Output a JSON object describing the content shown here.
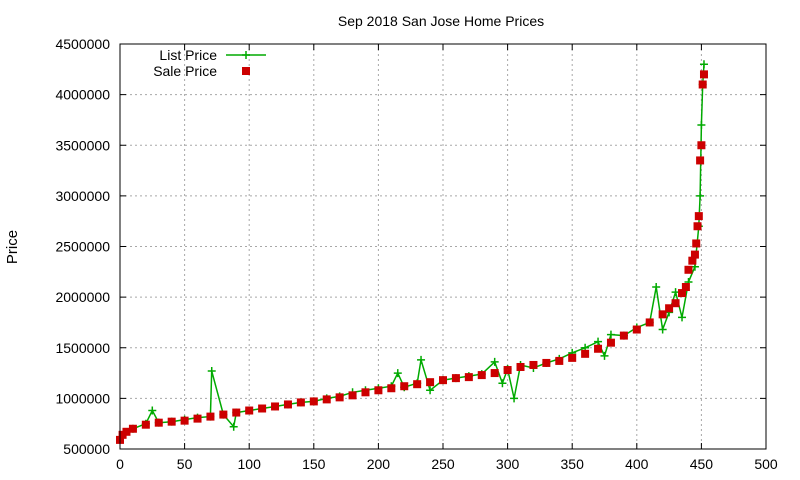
{
  "chart_data": {
    "type": "line",
    "title": "Sep 2018 San Jose Home Prices",
    "xlabel": "",
    "ylabel": "Price",
    "xlim": [
      0,
      500
    ],
    "ylim": [
      500000,
      4500000
    ],
    "x_ticks": [
      0,
      50,
      100,
      150,
      200,
      250,
      300,
      350,
      400,
      450,
      500
    ],
    "y_ticks": [
      500000,
      1000000,
      1500000,
      2000000,
      2500000,
      3000000,
      3500000,
      4000000,
      4500000
    ],
    "grid": true,
    "legend_position": "top-left",
    "series": [
      {
        "name": "List Price",
        "color": "#00aa00",
        "marker": "plus",
        "x": [
          0,
          10,
          20,
          25,
          30,
          40,
          50,
          60,
          70,
          71,
          80,
          88,
          90,
          100,
          110,
          120,
          130,
          140,
          150,
          160,
          170,
          180,
          190,
          200,
          210,
          215,
          220,
          230,
          233,
          240,
          250,
          260,
          270,
          280,
          290,
          296,
          300,
          305,
          310,
          320,
          330,
          340,
          350,
          360,
          370,
          375,
          380,
          390,
          400,
          410,
          415,
          420,
          425,
          430,
          435,
          440,
          445,
          448,
          449,
          450,
          451,
          452
        ],
        "values": [
          620000,
          700000,
          750000,
          880000,
          760000,
          770000,
          790000,
          810000,
          820000,
          1270000,
          840000,
          720000,
          860000,
          880000,
          900000,
          920000,
          940000,
          960000,
          970000,
          1000000,
          1020000,
          1060000,
          1080000,
          1100000,
          1120000,
          1250000,
          1110000,
          1150000,
          1380000,
          1080000,
          1180000,
          1200000,
          1220000,
          1240000,
          1360000,
          1150000,
          1290000,
          1000000,
          1330000,
          1300000,
          1350000,
          1390000,
          1450000,
          1500000,
          1560000,
          1420000,
          1630000,
          1620000,
          1700000,
          1750000,
          2100000,
          1680000,
          1850000,
          2050000,
          1800000,
          2150000,
          2300000,
          2700000,
          3000000,
          3700000,
          4100000,
          4300000
        ]
      },
      {
        "name": "Sale Price",
        "color": "#cc0000",
        "marker": "square",
        "x": [
          0,
          2,
          5,
          10,
          20,
          30,
          40,
          50,
          60,
          70,
          80,
          90,
          100,
          110,
          120,
          130,
          140,
          150,
          160,
          170,
          180,
          190,
          200,
          210,
          220,
          230,
          240,
          250,
          260,
          270,
          280,
          290,
          300,
          310,
          320,
          330,
          340,
          350,
          360,
          370,
          380,
          390,
          400,
          410,
          420,
          425,
          430,
          435,
          438,
          440,
          443,
          445,
          446,
          447,
          448,
          449,
          450,
          451,
          452
        ],
        "values": [
          590000,
          640000,
          670000,
          700000,
          740000,
          760000,
          770000,
          780000,
          800000,
          820000,
          840000,
          860000,
          880000,
          900000,
          920000,
          940000,
          960000,
          970000,
          990000,
          1010000,
          1030000,
          1060000,
          1080000,
          1100000,
          1120000,
          1140000,
          1160000,
          1180000,
          1200000,
          1210000,
          1230000,
          1250000,
          1280000,
          1310000,
          1330000,
          1350000,
          1370000,
          1400000,
          1440000,
          1490000,
          1550000,
          1620000,
          1680000,
          1750000,
          1830000,
          1890000,
          1940000,
          2040000,
          2100000,
          2270000,
          2360000,
          2420000,
          2530000,
          2700000,
          2800000,
          3350000,
          3500000,
          4100000,
          4200000
        ]
      }
    ]
  }
}
